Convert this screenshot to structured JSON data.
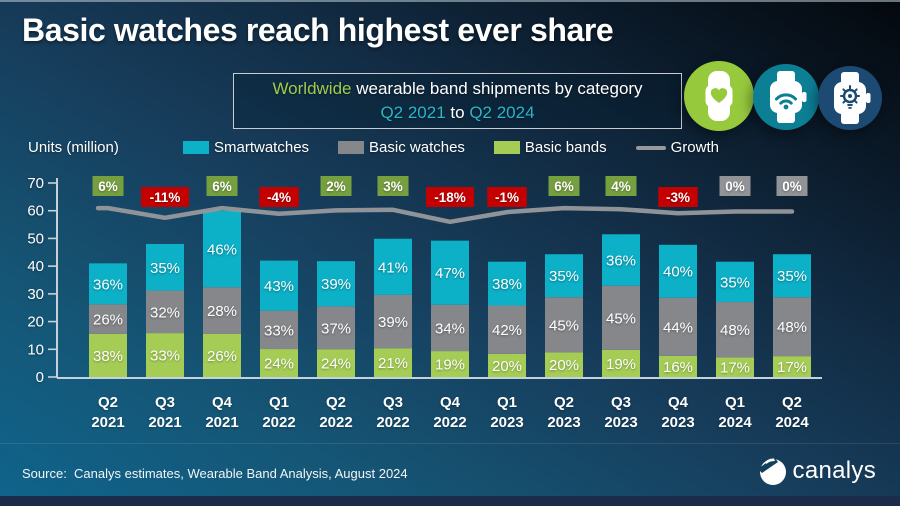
{
  "title": "Basic watches reach highest ever share",
  "subtitle": {
    "highlight": "Worldwide",
    "rest": " wearable band shipments by category",
    "range_start": "Q2 2021",
    "mid": " to ",
    "range_end": "Q2 2024",
    "highlight_color": "#a0cc4d",
    "range_color": "#2ab5c8"
  },
  "icons": [
    {
      "name": "fitness-band-heart",
      "bg": "#97c93d"
    },
    {
      "name": "smartwatch-wifi",
      "bg": "#0c7f95"
    },
    {
      "name": "smartwatch-smart-bulb",
      "bg": "#1d4a72"
    }
  ],
  "legend": {
    "items": [
      {
        "label": "Smartwatches",
        "color": "#0cb0c7",
        "swatch": "rect"
      },
      {
        "label": "Basic watches",
        "color": "#85878a",
        "swatch": "rect"
      },
      {
        "label": "Basic bands",
        "color": "#a5cd55",
        "swatch": "rect"
      },
      {
        "label": "Growth",
        "color": "#97999c",
        "swatch": "line"
      }
    ]
  },
  "chart_data": {
    "type": "bar",
    "subtype": "stacked-percent-with-growth-line",
    "title": "Worldwide wearable band shipments by category Q2 2021 to Q2 2024",
    "ylabel": "Units (million)",
    "ylim": [
      0,
      70
    ],
    "ytick_step": 10,
    "grid": false,
    "legend_position": "top",
    "categories": [
      "Q2 2021",
      "Q3 2021",
      "Q4 2021",
      "Q1 2022",
      "Q2 2022",
      "Q3 2022",
      "Q4 2022",
      "Q1 2023",
      "Q2 2023",
      "Q3 2023",
      "Q4 2023",
      "Q1 2024",
      "Q2 2024"
    ],
    "totals_million": [
      41.0,
      48.0,
      60.0,
      42.0,
      41.8,
      49.4,
      49.2,
      41.6,
      44.3,
      51.5,
      47.7,
      41.6,
      44.3
    ],
    "series": [
      {
        "name": "Smartwatches",
        "color": "#0cb0c7",
        "pct": [
          36,
          35,
          46,
          43,
          39,
          41,
          47,
          38,
          35,
          36,
          40,
          35,
          35
        ]
      },
      {
        "name": "Basic watches",
        "color": "#85878a",
        "pct": [
          26,
          32,
          28,
          33,
          37,
          39,
          34,
          42,
          45,
          45,
          44,
          48,
          48
        ]
      },
      {
        "name": "Basic bands",
        "color": "#a5cd55",
        "pct": [
          38,
          33,
          26,
          24,
          24,
          21,
          19,
          20,
          20,
          19,
          16,
          17,
          17
        ]
      }
    ],
    "growth_line": {
      "name": "Growth",
      "color": "#97999c",
      "values_pct": [
        6,
        -11,
        6,
        -4,
        2,
        3,
        -18,
        -1,
        6,
        4,
        -3,
        0,
        0
      ],
      "box_colors": {
        "positive": "#76a03f",
        "negative": "#c40000",
        "zero": "#919396"
      }
    },
    "axis_color": "#c6d2da",
    "label_color": "#ffffff"
  },
  "footer": {
    "source": "Source:  Canalys estimates, Wearable Band Analysis, August 2024",
    "logo_text": "canalys"
  }
}
